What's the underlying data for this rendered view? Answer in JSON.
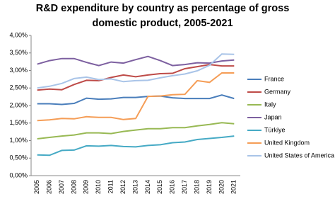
{
  "chart_data": {
    "type": "line",
    "title": "R&D expenditure by country as percentage of gross domestic product, 2005-2021",
    "categories": [
      "2005",
      "2006",
      "2007",
      "2008",
      "2009",
      "2010",
      "2011",
      "2012",
      "2013",
      "2014",
      "2015",
      "2016",
      "2017",
      "2018",
      "2019",
      "2020",
      "2021"
    ],
    "series": [
      {
        "name": "France",
        "color": "#4a7ebb",
        "values": [
          2.05,
          2.05,
          2.03,
          2.06,
          2.21,
          2.18,
          2.19,
          2.23,
          2.23,
          2.26,
          2.27,
          2.22,
          2.2,
          2.2,
          2.2,
          2.3,
          2.2
        ]
      },
      {
        "name": "Germany",
        "color": "#be4b48",
        "values": [
          2.44,
          2.47,
          2.45,
          2.6,
          2.72,
          2.71,
          2.8,
          2.87,
          2.82,
          2.87,
          2.91,
          2.92,
          3.05,
          3.11,
          3.17,
          3.13,
          3.13
        ]
      },
      {
        "name": "Italy",
        "color": "#98b954",
        "values": [
          1.05,
          1.09,
          1.13,
          1.16,
          1.22,
          1.22,
          1.2,
          1.26,
          1.3,
          1.34,
          1.34,
          1.37,
          1.37,
          1.42,
          1.46,
          1.51,
          1.48
        ]
      },
      {
        "name": "Japan",
        "color": "#7d60a0",
        "values": [
          3.18,
          3.28,
          3.34,
          3.34,
          3.23,
          3.14,
          3.24,
          3.21,
          3.31,
          3.4,
          3.28,
          3.14,
          3.17,
          3.22,
          3.21,
          3.27,
          3.3
        ]
      },
      {
        "name": "Türkiye",
        "color": "#46aac5",
        "values": [
          0.59,
          0.58,
          0.72,
          0.73,
          0.85,
          0.84,
          0.86,
          0.83,
          0.82,
          0.86,
          0.88,
          0.94,
          0.96,
          1.03,
          1.06,
          1.09,
          1.13
        ]
      },
      {
        "name": "United Kingdom",
        "color": "#f59d56",
        "values": [
          1.57,
          1.59,
          1.63,
          1.62,
          1.68,
          1.66,
          1.66,
          1.6,
          1.63,
          2.26,
          2.27,
          2.31,
          2.32,
          2.71,
          2.66,
          2.93,
          2.93
        ]
      },
      {
        "name": "United States of America",
        "color": "#a9c4e8",
        "values": [
          2.5,
          2.55,
          2.63,
          2.77,
          2.81,
          2.74,
          2.76,
          2.68,
          2.71,
          2.72,
          2.79,
          2.85,
          2.9,
          2.99,
          3.15,
          3.47,
          3.46
        ]
      }
    ],
    "ylim": [
      0,
      4
    ],
    "yticks": [
      {
        "value": 0,
        "label": "0,00%"
      },
      {
        "value": 0.5,
        "label": "0,50%"
      },
      {
        "value": 1,
        "label": "1,00%"
      },
      {
        "value": 1.5,
        "label": "1,50%"
      },
      {
        "value": 2,
        "label": "2,00%"
      },
      {
        "value": 2.5,
        "label": "2,50%"
      },
      {
        "value": 3,
        "label": "3,00%"
      },
      {
        "value": 3.5,
        "label": "3,50%"
      },
      {
        "value": 4,
        "label": "4,00%"
      }
    ],
    "grid": false,
    "legend": "right"
  }
}
